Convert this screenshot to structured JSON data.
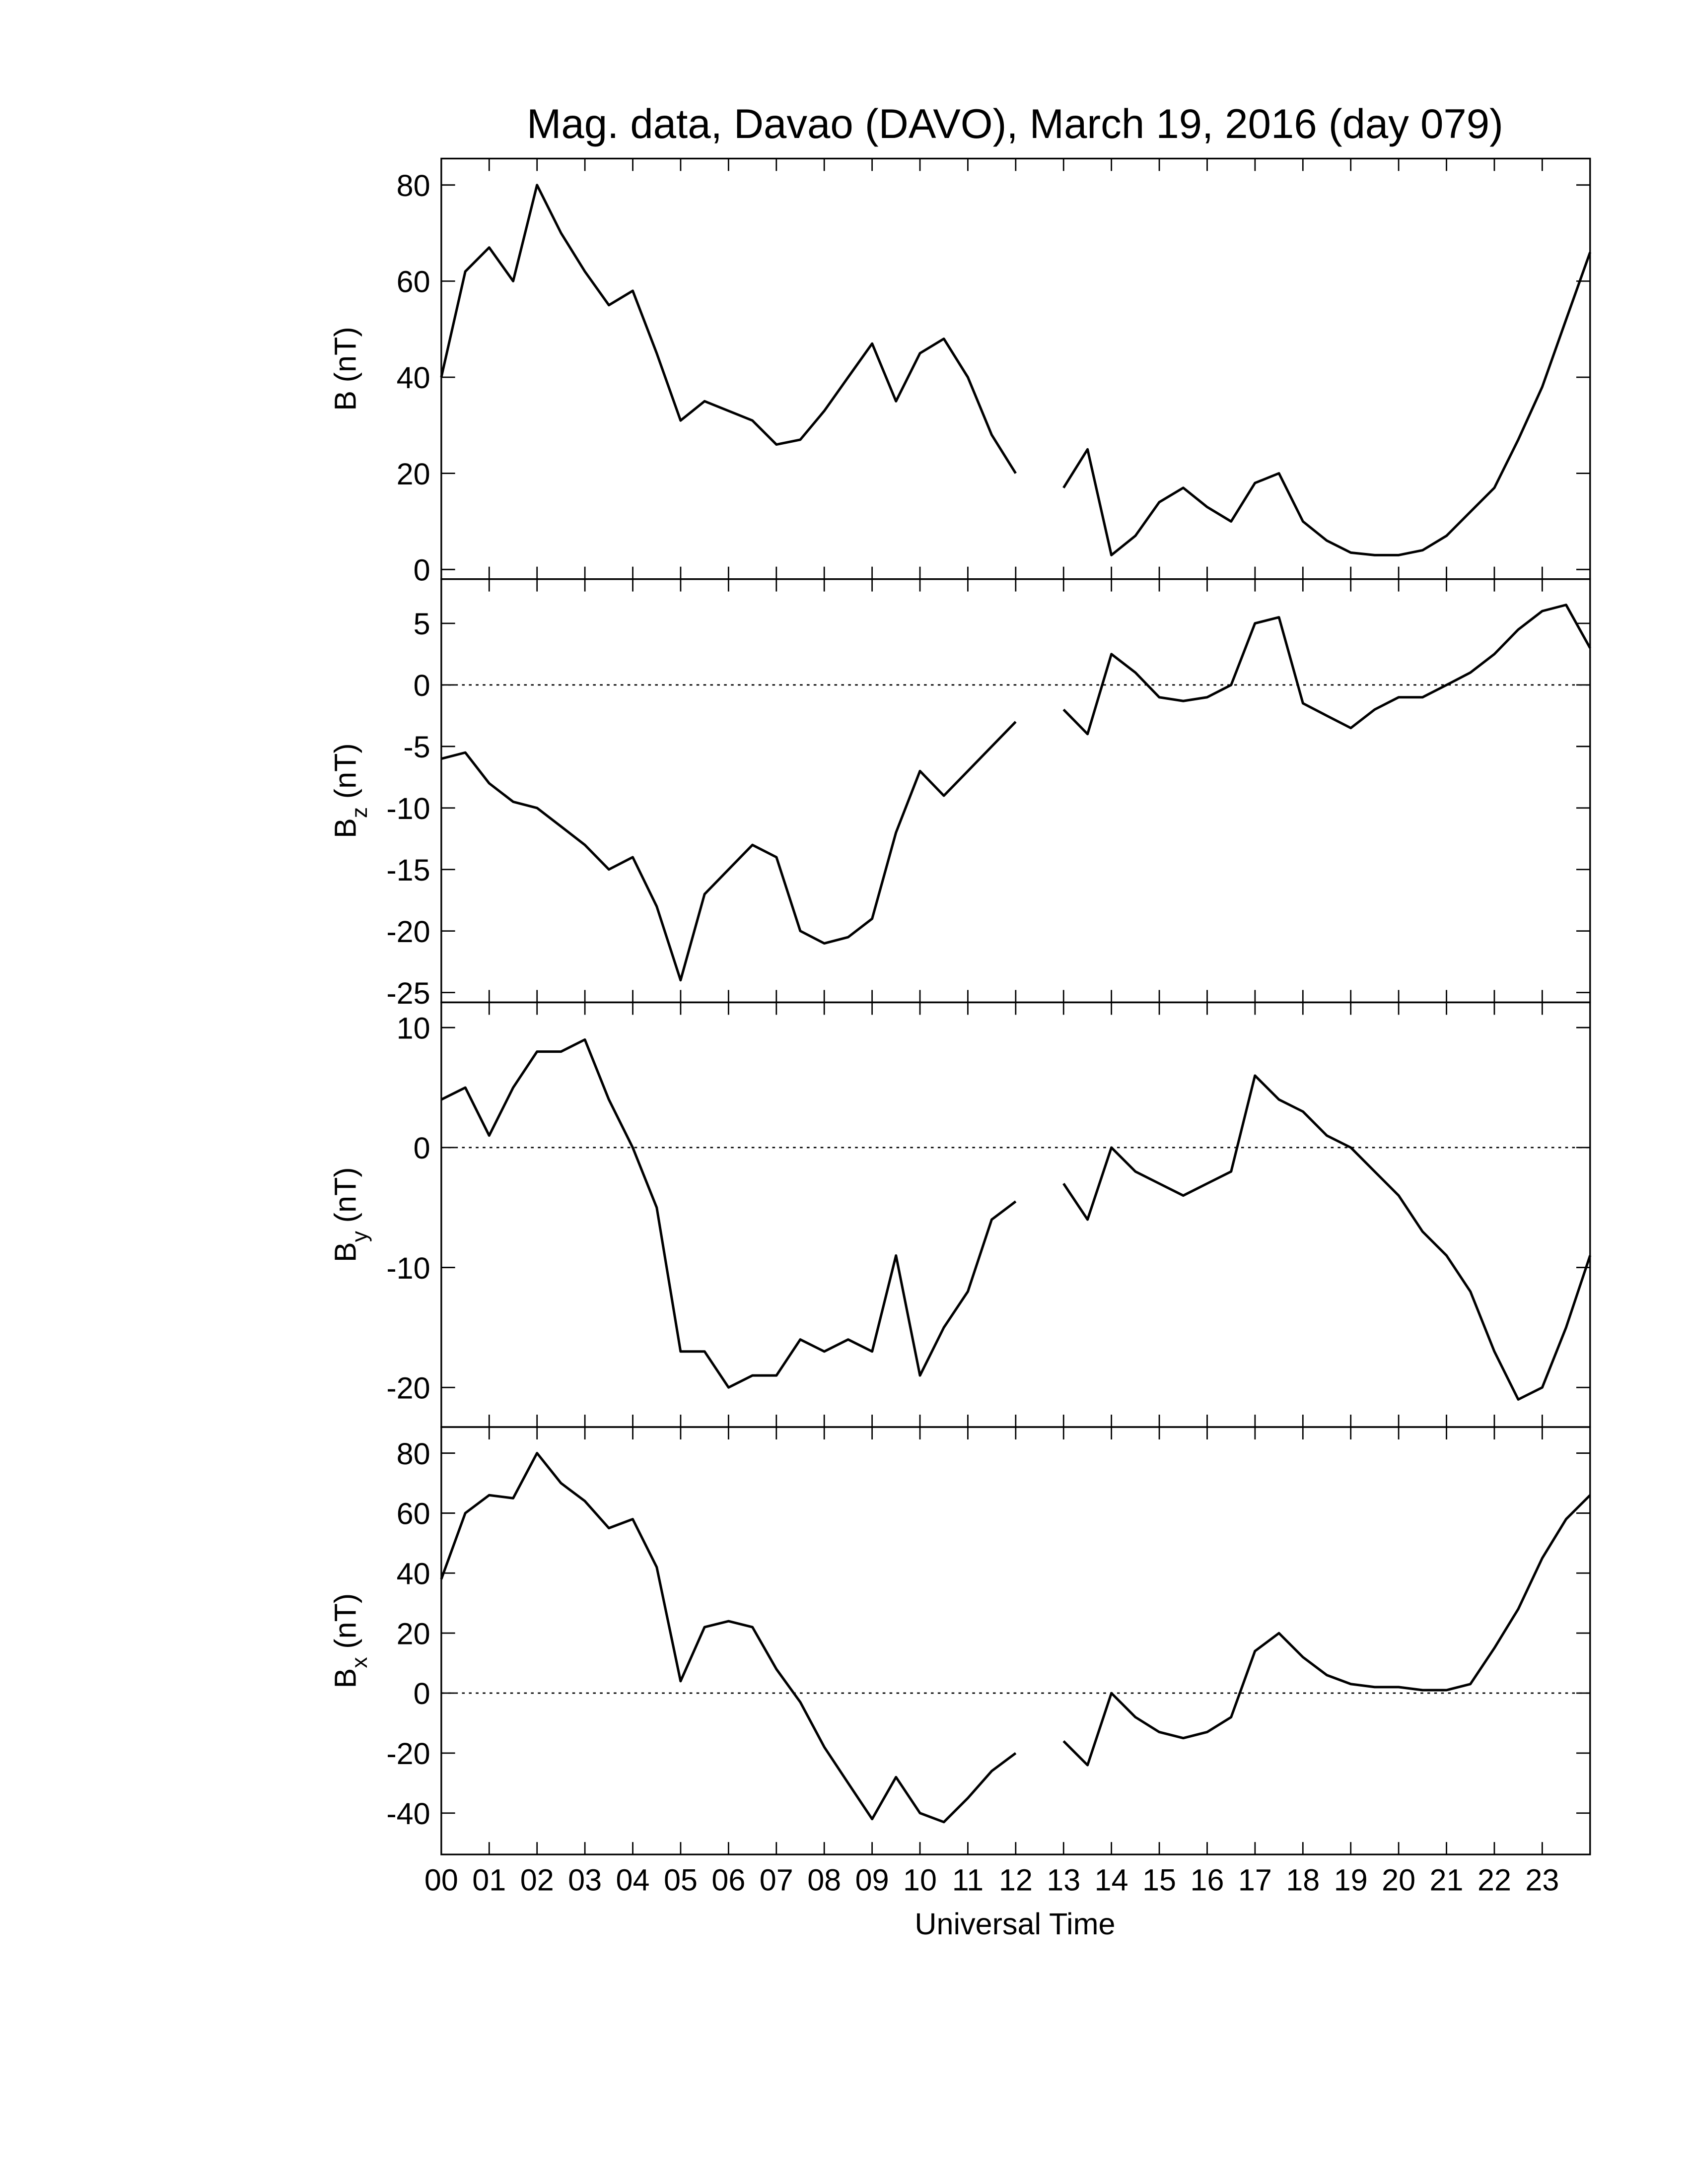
{
  "chart_data": [
    {
      "type": "line",
      "title": "Mag. data, Davao (DAVO), March 19, 2016 (day 079)",
      "ylabel": [
        "B",
        "",
        "(nT)"
      ],
      "x": [
        0,
        0.5,
        1,
        1.5,
        2,
        2.5,
        3,
        3.5,
        4,
        4.5,
        5,
        5.5,
        6,
        6.5,
        7,
        7.5,
        8,
        8.5,
        9,
        9.5,
        10,
        10.5,
        11,
        11.5,
        12,
        12.5,
        13,
        13.5,
        14,
        14.5,
        15,
        15.5,
        16,
        16.5,
        17,
        17.5,
        18,
        18.5,
        19,
        19.5,
        20,
        20.5,
        21,
        21.5,
        22,
        22.5,
        23,
        23.5,
        24
      ],
      "series": [
        {
          "color": "#000000",
          "values": [
            40,
            62,
            67,
            60,
            80,
            70,
            62,
            55,
            58,
            45,
            31,
            35,
            33,
            31,
            26,
            27,
            33,
            40,
            47,
            35,
            45,
            48,
            40,
            28,
            20,
            null,
            17,
            25,
            3,
            7,
            14,
            17,
            13,
            10,
            18,
            20,
            10,
            6,
            3.5,
            3,
            3,
            4,
            7,
            12,
            17,
            27,
            38,
            52,
            66
          ]
        }
      ],
      "xlim": [
        0,
        24
      ],
      "ylim": [
        -2,
        85.5
      ],
      "yticks": [
        0,
        20,
        40,
        60,
        80
      ],
      "zero_line": false
    },
    {
      "type": "line",
      "ylabel": [
        "B",
        "z",
        "(nT)"
      ],
      "x": [
        0,
        0.5,
        1,
        1.5,
        2,
        2.5,
        3,
        3.5,
        4,
        4.5,
        5,
        5.5,
        6,
        6.5,
        7,
        7.5,
        8,
        8.5,
        9,
        9.5,
        10,
        10.5,
        11,
        11.5,
        12,
        12.5,
        13,
        13.5,
        14,
        14.5,
        15,
        15.5,
        16,
        16.5,
        17,
        17.5,
        18,
        18.5,
        19,
        19.5,
        20,
        20.5,
        21,
        21.5,
        22,
        22.5,
        23,
        23.5,
        24
      ],
      "series": [
        {
          "color": "#000000",
          "values": [
            -6,
            -5.5,
            -8,
            -9.5,
            -10,
            -11.5,
            -13,
            -15,
            -14,
            -18,
            -24,
            -17,
            -15,
            -13,
            -14,
            -20,
            -21,
            -20.5,
            -19,
            -12,
            -7,
            -9,
            -7,
            -5,
            -3,
            null,
            -2,
            -4,
            2.5,
            1,
            -1,
            -1.3,
            -1,
            0,
            5,
            5.5,
            -1.5,
            -2.5,
            -3.5,
            -2,
            -1,
            -1,
            0,
            1,
            2.5,
            4.5,
            6,
            6.5,
            3
          ]
        }
      ],
      "xlim": [
        0,
        24
      ],
      "ylim": [
        -25.8,
        8.6
      ],
      "yticks": [
        -25,
        -20,
        -15,
        -10,
        -5,
        0,
        5
      ],
      "zero_line": true
    },
    {
      "type": "line",
      "ylabel": [
        "B",
        "y",
        "(nT)"
      ],
      "x": [
        0,
        0.5,
        1,
        1.5,
        2,
        2.5,
        3,
        3.5,
        4,
        4.5,
        5,
        5.5,
        6,
        6.5,
        7,
        7.5,
        8,
        8.5,
        9,
        9.5,
        10,
        10.5,
        11,
        11.5,
        12,
        12.5,
        13,
        13.5,
        14,
        14.5,
        15,
        15.5,
        16,
        16.5,
        17,
        17.5,
        18,
        18.5,
        19,
        19.5,
        20,
        20.5,
        21,
        21.5,
        22,
        22.5,
        23,
        23.5,
        24
      ],
      "series": [
        {
          "color": "#000000",
          "values": [
            4,
            5,
            1,
            5,
            8,
            8,
            9,
            4,
            0,
            -5,
            -17,
            -17,
            -20,
            -19,
            -19,
            -16,
            -17,
            -16,
            -17,
            -9,
            -19,
            -15,
            -12,
            -6,
            -4.5,
            null,
            -3,
            -6,
            0,
            -2,
            -3,
            -4,
            -3,
            -2,
            6,
            4,
            3,
            1,
            0,
            -2,
            -4,
            -7,
            -9,
            -12,
            -17,
            -21,
            -20,
            -15,
            -9
          ]
        }
      ],
      "xlim": [
        0,
        24
      ],
      "ylim": [
        -23.3,
        12.1
      ],
      "yticks": [
        -20,
        -10,
        0,
        10
      ],
      "zero_line": true
    },
    {
      "type": "line",
      "ylabel": [
        "B",
        "x",
        "(nT)"
      ],
      "xlabel": "Universal Time",
      "x": [
        0,
        0.5,
        1,
        1.5,
        2,
        2.5,
        3,
        3.5,
        4,
        4.5,
        5,
        5.5,
        6,
        6.5,
        7,
        7.5,
        8,
        8.5,
        9,
        9.5,
        10,
        10.5,
        11,
        11.5,
        12,
        12.5,
        13,
        13.5,
        14,
        14.5,
        15,
        15.5,
        16,
        16.5,
        17,
        17.5,
        18,
        18.5,
        19,
        19.5,
        20,
        20.5,
        21,
        21.5,
        22,
        22.5,
        23,
        23.5,
        24
      ],
      "series": [
        {
          "color": "#000000",
          "values": [
            38,
            60,
            66,
            65,
            80,
            70,
            64,
            55,
            58,
            42,
            4,
            22,
            24,
            22,
            8,
            -3,
            -18,
            -30,
            -42,
            -28,
            -40,
            -43,
            -35,
            -26,
            -20,
            null,
            -16,
            -24,
            0,
            -8,
            -13,
            -15,
            -13,
            -8,
            14,
            20,
            12,
            6,
            3,
            2,
            2,
            1,
            1,
            3,
            15,
            28,
            45,
            58,
            66
          ]
        }
      ],
      "xlim": [
        0,
        24
      ],
      "ylim": [
        -53.8,
        88.7
      ],
      "yticks": [
        -40,
        -20,
        0,
        20,
        40,
        60,
        80
      ],
      "zero_line": true,
      "xticks": [
        {
          "value": 0,
          "label": "00"
        },
        {
          "value": 1,
          "label": "01"
        },
        {
          "value": 2,
          "label": "02"
        },
        {
          "value": 3,
          "label": "03"
        },
        {
          "value": 4,
          "label": "04"
        },
        {
          "value": 5,
          "label": "05"
        },
        {
          "value": 6,
          "label": "06"
        },
        {
          "value": 7,
          "label": "07"
        },
        {
          "value": 8,
          "label": "08"
        },
        {
          "value": 9,
          "label": "09"
        },
        {
          "value": 10,
          "label": "10"
        },
        {
          "value": 11,
          "label": "11"
        },
        {
          "value": 12,
          "label": "12"
        },
        {
          "value": 13,
          "label": "13"
        },
        {
          "value": 14,
          "label": "14"
        },
        {
          "value": 15,
          "label": "15"
        },
        {
          "value": 16,
          "label": "16"
        },
        {
          "value": 17,
          "label": "17"
        },
        {
          "value": 18,
          "label": "18"
        },
        {
          "value": 19,
          "label": "19"
        },
        {
          "value": 20,
          "label": "20"
        },
        {
          "value": 21,
          "label": "21"
        },
        {
          "value": 22,
          "label": "22"
        },
        {
          "value": 23,
          "label": "23"
        }
      ]
    }
  ]
}
